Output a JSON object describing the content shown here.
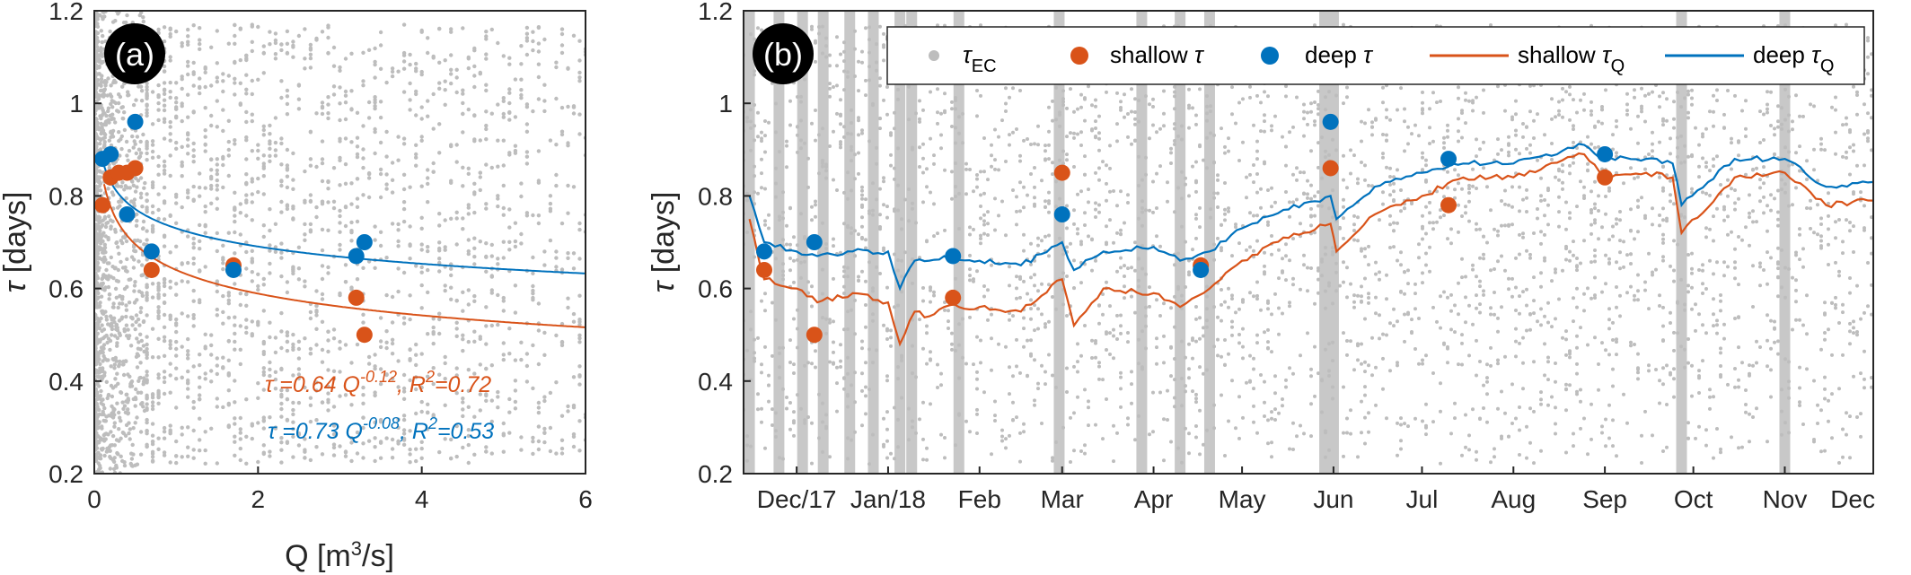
{
  "colors": {
    "tau_ec": "#bdbdbd",
    "shallow": "#d95319",
    "deep": "#0072bd",
    "wet_band": "#c8c8c8",
    "axis": "#262626"
  },
  "chart_data": [
    {
      "type": "scatter",
      "panel_label": "(a)",
      "xlabel": "Q [m³/s]",
      "ylabel": "τ [days]",
      "xlim": [
        0,
        6
      ],
      "ylim": [
        0.2,
        1.2
      ],
      "xticks": [
        "0",
        "2",
        "4",
        "6"
      ],
      "yticks": [
        "0.2",
        "0.4",
        "0.6",
        "0.8",
        "1",
        "1.2"
      ],
      "grid": false,
      "series": [
        {
          "name": "shallow τ",
          "color": "#d95319",
          "x": [
            0.1,
            0.2,
            0.3,
            0.4,
            0.5,
            0.7,
            1.7,
            3.2,
            3.3
          ],
          "y": [
            0.78,
            0.84,
            0.85,
            0.85,
            0.86,
            0.64,
            0.65,
            0.58,
            0.5
          ]
        },
        {
          "name": "deep τ",
          "color": "#0072bd",
          "x": [
            0.1,
            0.2,
            0.4,
            0.5,
            0.7,
            1.7,
            3.2,
            3.3
          ],
          "y": [
            0.88,
            0.89,
            0.76,
            0.96,
            0.68,
            0.64,
            0.67,
            0.7
          ]
        }
      ],
      "fits": [
        {
          "name": "shallow fit",
          "color": "#d95319",
          "a": 0.64,
          "b": -0.12,
          "equation": "τ =0.64 Q^-0.12, R²=0.72",
          "r2": 0.72
        },
        {
          "name": "deep fit",
          "color": "#0072bd",
          "a": 0.73,
          "b": -0.08,
          "equation": "τ =0.73 Q^-0.08, R²=0.53",
          "r2": 0.53
        }
      ]
    },
    {
      "type": "line",
      "panel_label": "(b)",
      "ylabel": "τ [days]",
      "ylim": [
        0.2,
        1.2
      ],
      "yticks": [
        "0.2",
        "0.4",
        "0.6",
        "0.8",
        "1",
        "1.2"
      ],
      "xticks": [
        "Dec/17",
        "Jan/18",
        "Feb",
        "Mar",
        "Apr",
        "May",
        "Jun",
        "Jul",
        "Aug",
        "Sep",
        "Oct",
        "Nov",
        "Dec"
      ],
      "legend": [
        "τEC",
        "shallow τ",
        "deep τ",
        "shallow τQ",
        "deep τQ"
      ],
      "legend_position": "top",
      "grid": false,
      "series": [
        {
          "name": "shallow τ",
          "color": "#d95319",
          "x": [
            "2017-11-20",
            "2017-12-07",
            "2018-01-23",
            "2018-03-01",
            "2018-04-17",
            "2018-05-31",
            "2018-07-10",
            "2018-09-01"
          ],
          "y": [
            0.64,
            0.5,
            0.58,
            0.85,
            0.65,
            0.86,
            0.78,
            0.84
          ]
        },
        {
          "name": "deep τ",
          "color": "#0072bd",
          "x": [
            "2017-11-20",
            "2017-12-07",
            "2018-01-23",
            "2018-03-01",
            "2018-04-17",
            "2018-05-31",
            "2018-07-10",
            "2018-09-01"
          ],
          "y": [
            0.68,
            0.7,
            0.67,
            0.76,
            0.64,
            0.96,
            0.88,
            0.89
          ]
        },
        {
          "name": "shallow τQ",
          "color": "#d95319",
          "x": [
            "2017-11-15",
            "2017-11-20",
            "2017-12-01",
            "2017-12-08",
            "2017-12-20",
            "2018-01-01",
            "2018-01-05",
            "2018-01-10",
            "2018-01-15",
            "2018-01-20",
            "2018-02-01",
            "2018-02-15",
            "2018-03-01",
            "2018-03-05",
            "2018-03-15",
            "2018-04-01",
            "2018-04-10",
            "2018-04-20",
            "2018-05-01",
            "2018-05-15",
            "2018-05-31",
            "2018-06-02",
            "2018-06-15",
            "2018-07-01",
            "2018-07-15",
            "2018-08-01",
            "2018-08-25",
            "2018-09-01",
            "2018-09-15",
            "2018-09-24",
            "2018-09-27",
            "2018-10-15",
            "2018-11-01",
            "2018-11-15",
            "2018-12-01"
          ],
          "y": [
            0.75,
            0.62,
            0.6,
            0.57,
            0.59,
            0.57,
            0.48,
            0.55,
            0.54,
            0.56,
            0.56,
            0.55,
            0.62,
            0.52,
            0.6,
            0.59,
            0.56,
            0.6,
            0.66,
            0.71,
            0.74,
            0.68,
            0.76,
            0.8,
            0.84,
            0.84,
            0.89,
            0.84,
            0.85,
            0.84,
            0.72,
            0.84,
            0.85,
            0.78,
            0.79
          ]
        },
        {
          "name": "deep τQ",
          "color": "#0072bd",
          "x": [
            "2017-11-15",
            "2017-11-20",
            "2017-12-01",
            "2017-12-08",
            "2017-12-20",
            "2018-01-01",
            "2018-01-05",
            "2018-01-10",
            "2018-01-15",
            "2018-01-20",
            "2018-02-01",
            "2018-02-15",
            "2018-03-01",
            "2018-03-05",
            "2018-03-15",
            "2018-04-01",
            "2018-04-10",
            "2018-04-20",
            "2018-05-01",
            "2018-05-15",
            "2018-05-31",
            "2018-06-02",
            "2018-06-15",
            "2018-07-01",
            "2018-07-15",
            "2018-08-01",
            "2018-08-25",
            "2018-09-01",
            "2018-09-15",
            "2018-09-24",
            "2018-09-27",
            "2018-10-15",
            "2018-11-01",
            "2018-11-15",
            "2018-12-01"
          ],
          "y": [
            0.8,
            0.7,
            0.68,
            0.67,
            0.68,
            0.68,
            0.6,
            0.66,
            0.66,
            0.67,
            0.66,
            0.65,
            0.7,
            0.64,
            0.68,
            0.69,
            0.66,
            0.68,
            0.73,
            0.77,
            0.8,
            0.75,
            0.82,
            0.85,
            0.87,
            0.87,
            0.91,
            0.88,
            0.88,
            0.87,
            0.78,
            0.88,
            0.88,
            0.82,
            0.83
          ]
        }
      ]
    }
  ]
}
